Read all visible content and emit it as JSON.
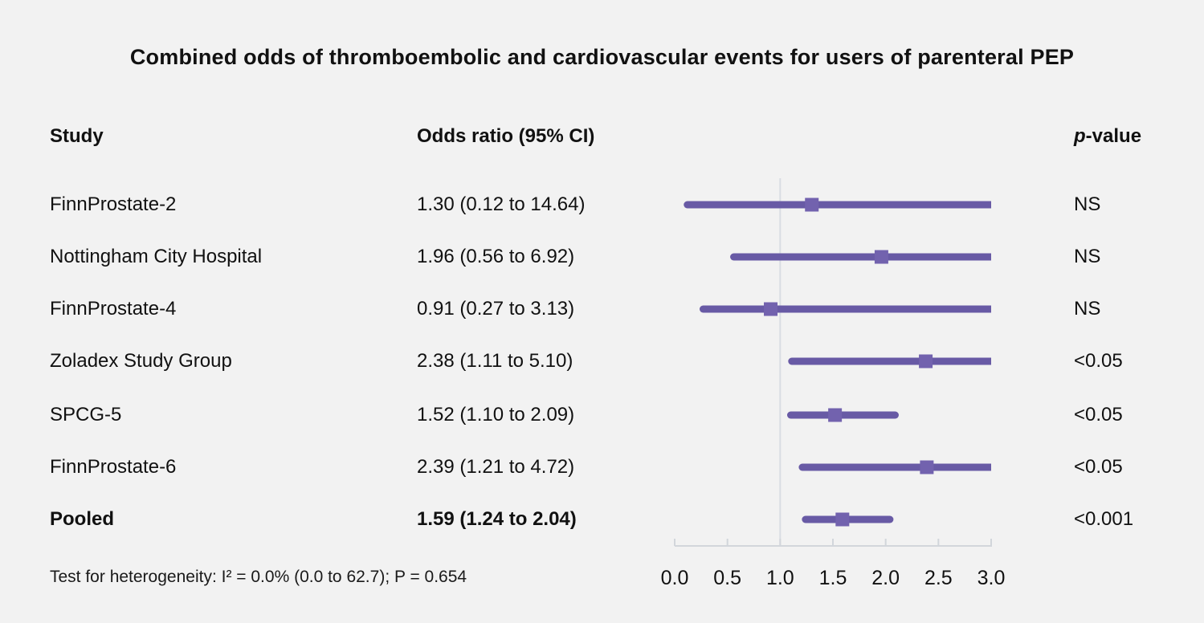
{
  "title": "Combined odds of thromboembolic and cardiovascular events for users of parenteral PEP",
  "headers": {
    "study": "Study",
    "odds_ratio": "Odds ratio (95% CI)",
    "p_value_italic": "p",
    "p_value_rest": "-value"
  },
  "footer": "Test for heterogeneity: I² = 0.0% (0.0 to 62.7); P = 0.654",
  "chart_data": {
    "type": "forest",
    "xlim": [
      0.0,
      3.0
    ],
    "reference_line": 1.0,
    "tick_values": [
      0.0,
      0.5,
      1.0,
      1.5,
      2.0,
      2.5,
      3.0
    ],
    "tick_labels": [
      "0.0",
      "0.5",
      "1.0",
      "1.5",
      "2.0",
      "2.5",
      "3.0"
    ],
    "rows": [
      {
        "study": "FinnProstate-2",
        "or_text": "1.30 (0.12 to 14.64)",
        "or": 1.3,
        "ci_low": 0.12,
        "ci_high": 14.64,
        "p": "NS",
        "bold": false
      },
      {
        "study": "Nottingham City Hospital",
        "or_text": "1.96 (0.56 to 6.92)",
        "or": 1.96,
        "ci_low": 0.56,
        "ci_high": 6.92,
        "p": "NS",
        "bold": false
      },
      {
        "study": "FinnProstate-4",
        "or_text": "0.91 (0.27 to 3.13)",
        "or": 0.91,
        "ci_low": 0.27,
        "ci_high": 3.13,
        "p": "NS",
        "bold": false
      },
      {
        "study": "Zoladex Study Group",
        "or_text": "2.38 (1.11 to 5.10)",
        "or": 2.38,
        "ci_low": 1.11,
        "ci_high": 5.1,
        "p": "<0.05",
        "bold": false
      },
      {
        "study": "SPCG-5",
        "or_text": "1.52 (1.10 to 2.09)",
        "or": 1.52,
        "ci_low": 1.1,
        "ci_high": 2.09,
        "p": "<0.05",
        "bold": false
      },
      {
        "study": "FinnProstate-6",
        "or_text": "2.39 (1.21 to 4.72)",
        "or": 2.39,
        "ci_low": 1.21,
        "ci_high": 4.72,
        "p": "<0.05",
        "bold": false
      },
      {
        "study": "Pooled",
        "or_text": "1.59 (1.24 to 2.04)",
        "or": 1.59,
        "ci_low": 1.24,
        "ci_high": 2.04,
        "p": "<0.001",
        "bold": true
      }
    ]
  },
  "colors": {
    "background": "#f2f2f2",
    "ci_line": "#685aa5",
    "marker": "#7262ae",
    "reference_line": "#d9dde3",
    "axis": "#d2d6db",
    "text": "#111111"
  }
}
